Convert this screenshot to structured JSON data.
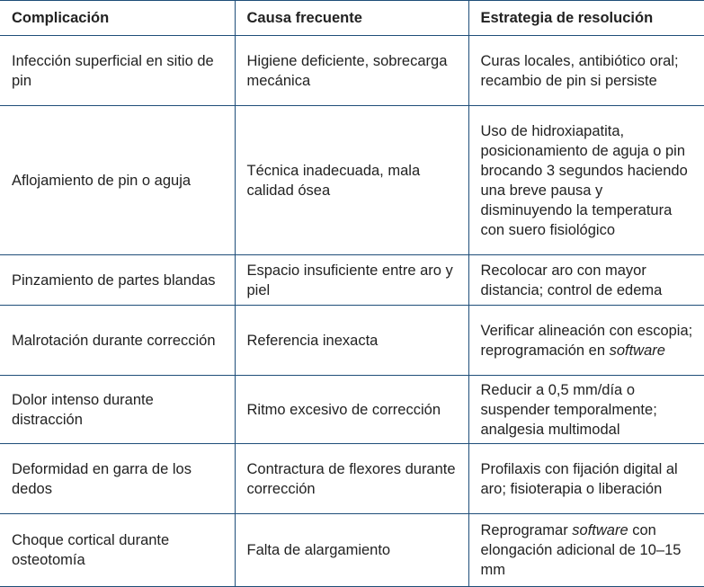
{
  "table": {
    "headers": [
      "Complicación",
      "Causa frecuente",
      "Estrategia de resolución"
    ],
    "rows": [
      {
        "complication": "Infección superficial en sitio de pin",
        "cause": "Higiene deficiente, sobrecarga mecánica",
        "strategy": [
          {
            "t": "Curas locales, antibiótico oral; recambio de pin si persiste"
          }
        ]
      },
      {
        "complication": "Aflojamiento de pin o aguja",
        "cause": "Técnica inadecuada, mala calidad ósea",
        "strategy": [
          {
            "t": "Uso de hidroxiapatita, posicionamiento de aguja o pin brocando 3 segundos haciendo una breve pausa y disminuyendo la temperatura con suero fisiológico"
          }
        ]
      },
      {
        "complication": "Pinzamiento de partes blandas",
        "cause": "Espacio insuficiente entre aro y piel",
        "strategy": [
          {
            "t": "Recolocar aro con mayor distancia; control de edema"
          }
        ]
      },
      {
        "complication": "Malrotación durante corrección",
        "cause": "Referencia inexacta",
        "strategy": [
          {
            "t": "Verificar alineación con escopia; reprogramación en "
          },
          {
            "t": "software",
            "i": true
          }
        ]
      },
      {
        "complication": "Dolor intenso durante distracción",
        "cause": "Ritmo excesivo de corrección",
        "strategy": [
          {
            "t": "Reducir a 0,5 mm/día o suspender temporalmente; analgesia multimodal"
          }
        ]
      },
      {
        "complication": "Deformidad en garra de los dedos",
        "cause": "Contractura de flexores durante corrección",
        "strategy": [
          {
            "t": "Profilaxis con fijación digital al aro; fisioterapia o liberación"
          }
        ]
      },
      {
        "complication": "Choque cortical durante osteotomía",
        "cause": "Falta de alargamiento",
        "strategy": [
          {
            "t": "Reprogramar "
          },
          {
            "t": "software",
            "i": true
          },
          {
            "t": " con elongación adicional de 10–15 mm"
          }
        ]
      }
    ]
  },
  "colors": {
    "border": "#1f4e79",
    "text": "#222222"
  }
}
